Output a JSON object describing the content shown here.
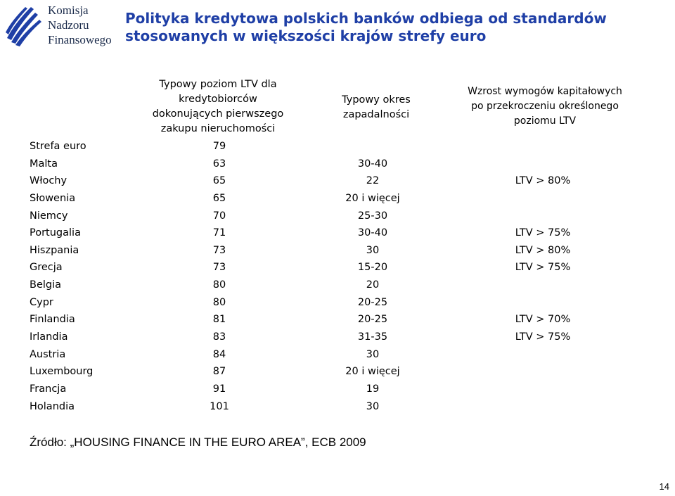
{
  "logo": {
    "line1": "Komisja",
    "line2": "Nadzoru",
    "line3": "Finansowego"
  },
  "title": {
    "line1": "Polityka kredytowa polskich banków odbiega od standardów",
    "line2": "stosowanych w większości krajów strefy euro"
  },
  "headers": {
    "ltv": [
      "Typowy poziom LTV dla",
      "kredytobiorców",
      "dokonujących pierwszego",
      "zakupu nieruchomości"
    ],
    "term": [
      "Typowy okres",
      "zapadalności"
    ],
    "req": [
      "Wzrost wymogów kapitałowych",
      "po przekroczeniu określonego",
      "poziomu LTV"
    ]
  },
  "rows": [
    {
      "country": "Strefa euro",
      "ltv": "79",
      "term": "",
      "req": ""
    },
    {
      "country": "Malta",
      "ltv": "63",
      "term": "30-40",
      "req": ""
    },
    {
      "country": "Włochy",
      "ltv": "65",
      "term": "22",
      "req": "LTV > 80%"
    },
    {
      "country": "Słowenia",
      "ltv": "65",
      "term": "20 i więcej",
      "req": ""
    },
    {
      "country": "Niemcy",
      "ltv": "70",
      "term": "25-30",
      "req": ""
    },
    {
      "country": "Portugalia",
      "ltv": "71",
      "term": "30-40",
      "req": "LTV > 75%"
    },
    {
      "country": "Hiszpania",
      "ltv": "73",
      "term": "30",
      "req": "LTV > 80%"
    },
    {
      "country": "Grecja",
      "ltv": "73",
      "term": "15-20",
      "req": "LTV > 75%"
    },
    {
      "country": "Belgia",
      "ltv": "80",
      "term": "20",
      "req": ""
    },
    {
      "country": "Cypr",
      "ltv": "80",
      "term": "20-25",
      "req": ""
    },
    {
      "country": "Finlandia",
      "ltv": "81",
      "term": "20-25",
      "req": "LTV > 70%"
    },
    {
      "country": "Irlandia",
      "ltv": "83",
      "term": "31-35",
      "req": "LTV > 75%"
    },
    {
      "country": "Austria",
      "ltv": "84",
      "term": "30",
      "req": ""
    },
    {
      "country": "Luxembourg",
      "ltv": "87",
      "term": "20 i więcej",
      "req": ""
    },
    {
      "country": "Francja",
      "ltv": "91",
      "term": "19",
      "req": ""
    },
    {
      "country": "Holandia",
      "ltv": "101",
      "term": "30",
      "req": ""
    }
  ],
  "source": "Źródło: „HOUSING FINANCE IN THE EURO AREA”, ECB 2009",
  "page_number": "14",
  "colors": {
    "title": "#1f3fa6",
    "logo_text": "#1a2a4a",
    "logo_mark": "#1f3fa6"
  }
}
